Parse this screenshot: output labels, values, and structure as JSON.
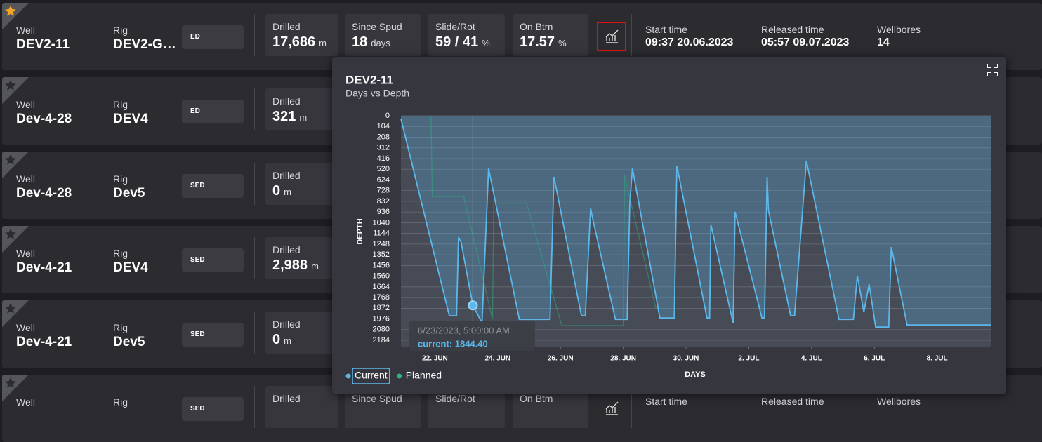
{
  "rows": [
    {
      "favorite": true,
      "selected": true,
      "well_label": "Well",
      "well": "DEV2-11",
      "rig_label": "Rig",
      "rig": "DEV2-G…",
      "status": "ED",
      "metrics": [
        {
          "label": "Drilled",
          "value": "17,686",
          "unit": "m"
        },
        {
          "label": "Since Spud",
          "value": "18",
          "unit": "days"
        },
        {
          "label": "Slide/Rot",
          "value": "59 / 41",
          "unit": "%"
        },
        {
          "label": "On Btm",
          "value": "17.57",
          "unit": "%"
        }
      ],
      "info": [
        {
          "label": "Start time",
          "value": "09:37 20.06.2023"
        },
        {
          "label": "Released time",
          "value": "05:57 09.07.2023"
        },
        {
          "label": "Wellbores",
          "value": "14"
        }
      ]
    },
    {
      "favorite": false,
      "selected": false,
      "well_label": "Well",
      "well": "Dev-4-28",
      "rig_label": "Rig",
      "rig": "DEV4",
      "status": "ED",
      "metrics": [
        {
          "label": "Drilled",
          "value": "321",
          "unit": "m"
        }
      ],
      "info": []
    },
    {
      "favorite": false,
      "selected": false,
      "well_label": "Well",
      "well": "Dev-4-28",
      "rig_label": "Rig",
      "rig": "Dev5",
      "status": "SED",
      "metrics": [
        {
          "label": "Drilled",
          "value": "0",
          "unit": "m"
        }
      ],
      "info": []
    },
    {
      "favorite": false,
      "selected": false,
      "well_label": "Well",
      "well": "Dev-4-21",
      "rig_label": "Rig",
      "rig": "DEV4",
      "status": "SED",
      "metrics": [
        {
          "label": "Drilled",
          "value": "2,988",
          "unit": "m"
        }
      ],
      "info": []
    },
    {
      "favorite": false,
      "selected": false,
      "well_label": "Well",
      "well": "Dev-4-21",
      "rig_label": "Rig",
      "rig": "Dev5",
      "status": "SED",
      "metrics": [
        {
          "label": "Drilled",
          "value": "0",
          "unit": "m"
        }
      ],
      "info": []
    },
    {
      "favorite": false,
      "selected": false,
      "well_label": "Well",
      "rig_label": "Rig",
      "status": "SED",
      "metrics": [
        {
          "label": "Drilled"
        },
        {
          "label": "Since Spud"
        },
        {
          "label": "Slide/Rot"
        },
        {
          "label": "On Btm"
        }
      ],
      "info": [
        {
          "label": "Start time"
        },
        {
          "label": "Released time"
        },
        {
          "label": "Wellbores"
        }
      ]
    }
  ],
  "chart_data": {
    "type": "line",
    "title": "DEV2-11",
    "subtitle": "Days vs Depth",
    "x_label": "DAYS",
    "y_label": "DEPTH",
    "xlim": [
      "2023-06-20T22:00",
      "2023-07-09T17:00"
    ],
    "xticks": [
      {
        "value": "2023-06-22T00:00",
        "label": "22. JUN"
      },
      {
        "value": "2023-06-24T00:00",
        "label": "24. JUN"
      },
      {
        "value": "2023-06-26T00:00",
        "label": "26. JUN"
      },
      {
        "value": "2023-06-28T00:00",
        "label": "28. JUN"
      },
      {
        "value": "2023-06-30T00:00",
        "label": "30. JUN"
      },
      {
        "value": "2023-07-02T00:00",
        "label": "2. JUL"
      },
      {
        "value": "2023-07-04T00:00",
        "label": "4. JUL"
      },
      {
        "value": "2023-07-06T00:00",
        "label": "6. JUL"
      },
      {
        "value": "2023-07-08T00:00",
        "label": "8. JUL"
      }
    ],
    "ylim": [
      0,
      2245
    ],
    "y_reversed": true,
    "yticks": [
      0,
      104,
      208,
      312,
      416,
      520,
      624,
      728,
      832,
      936,
      1040,
      1144,
      1248,
      1352,
      1456,
      1560,
      1664,
      1768,
      1872,
      1976,
      2080,
      2184
    ],
    "grid": true,
    "series": [
      {
        "name": "Current",
        "color": "#5bb8ec",
        "fill": true,
        "x": [
          "2023-06-20T22:00",
          "2023-06-22T11:00",
          "2023-06-22T16:30",
          "2023-06-22T18:00",
          "2023-06-22T20:00",
          "2023-06-23T05:00",
          "2023-06-23T12:00",
          "2023-06-23T17:00",
          "2023-06-24T16:30",
          "2023-06-25T16:00",
          "2023-06-25T19:00",
          "2023-06-26T16:00",
          "2023-06-26T19:00",
          "2023-06-26T23:00",
          "2023-06-27T01:00",
          "2023-06-27T18:00",
          "2023-06-28T03:00",
          "2023-06-28T05:00",
          "2023-06-28T07:00",
          "2023-06-29T04:00",
          "2023-06-29T15:00",
          "2023-06-29T17:00",
          "2023-06-30T16:00",
          "2023-06-30T18:00",
          "2023-06-30T19:00",
          "2023-07-01T12:00",
          "2023-07-01T13:30",
          "2023-07-02T10:00",
          "2023-07-02T12:00",
          "2023-07-02T14:00",
          "2023-07-02T15:00",
          "2023-07-03T08:00",
          "2023-07-03T11:00",
          "2023-07-03T20:00",
          "2023-07-04T21:00",
          "2023-07-05T08:00",
          "2023-07-05T11:00",
          "2023-07-05T16:00",
          "2023-07-05T20:00",
          "2023-07-06T01:00",
          "2023-07-06T11:00",
          "2023-07-06T13:00",
          "2023-07-07T01:00",
          "2023-07-09T17:00"
        ],
        "values": [
          30,
          1945,
          1945,
          1180,
          1230,
          1844.4,
          2015,
          512,
          1980,
          1980,
          594,
          1945,
          1945,
          900,
          1024,
          1980,
          1980,
          853,
          512,
          1966,
          1966,
          485,
          1966,
          1966,
          1058,
          2015,
          935,
          1966,
          1966,
          594,
          921,
          1945,
          1945,
          437,
          1980,
          1980,
          1556,
          1911,
          1638,
          2055,
          2055,
          1276,
          2034,
          2034
        ]
      },
      {
        "name": "Planned",
        "color": "#2bb585",
        "fill": false,
        "x": [
          "2023-06-21T21:00",
          "2023-06-21T22:00",
          "2023-06-22T22:00",
          "2023-06-23T20:00",
          "2023-06-23T21:00",
          "2023-06-24T22:00",
          "2023-06-26T01:00",
          "2023-06-28T00:00",
          "2023-06-28T01:00",
          "2023-06-29T01:00"
        ],
        "values": [
          0,
          785,
          785,
          1980,
          850,
          850,
          2040,
          2040,
          580,
          1880
        ]
      }
    ],
    "marker": {
      "series": 0,
      "index": 5
    },
    "tooltip": {
      "date": "6/23/2023, 5:00:00 AM",
      "label": "current: 1844.40"
    }
  }
}
